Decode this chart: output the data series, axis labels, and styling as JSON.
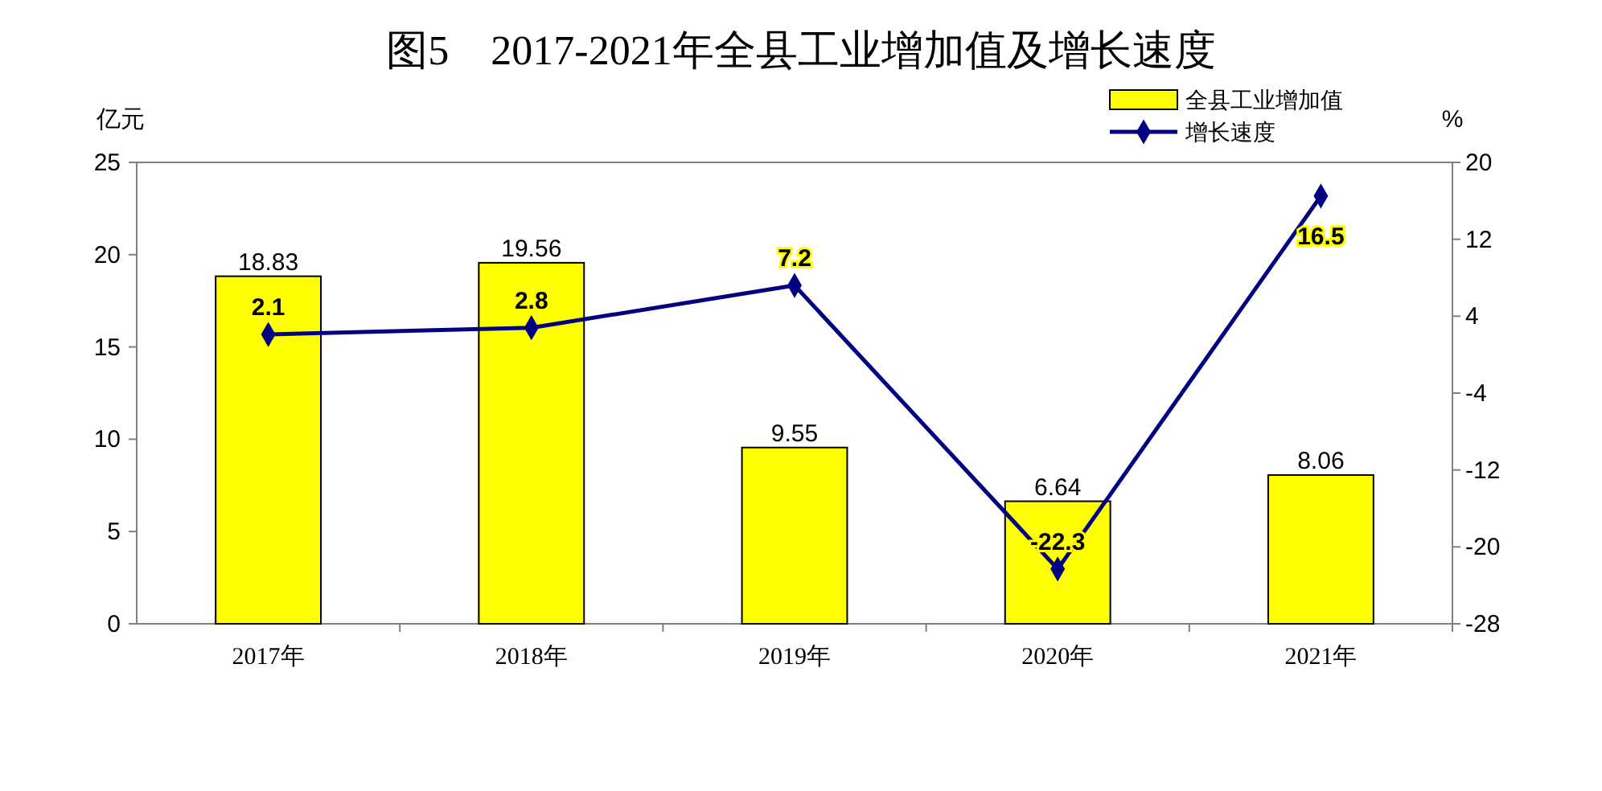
{
  "chart_data": {
    "type": "bar",
    "title": "图5　2017-2021年全县工业增加值及增长速度",
    "ylabel": "亿元",
    "y2label": "%",
    "categories": [
      "2017年",
      "2018年",
      "2019年",
      "2020年",
      "2021年"
    ],
    "series": [
      {
        "name": "全县工业增加值",
        "color": "#ffff00",
        "values": [
          18.83,
          19.56,
          9.55,
          6.64,
          8.06
        ]
      },
      {
        "name": "增长速度",
        "type": "line",
        "axis": "y2",
        "color": "#000080",
        "marker": "diamond",
        "values": [
          2.1,
          2.8,
          7.2,
          -22.3,
          16.5
        ]
      }
    ],
    "ylim": [
      0,
      25
    ],
    "yticks": [
      0,
      5,
      10,
      15,
      20,
      25
    ],
    "y2lim": [
      -28,
      20
    ],
    "y2ticks": [
      -28,
      -20,
      -12,
      -4,
      4,
      12,
      20
    ],
    "data_labels": true,
    "legend": "top right",
    "grid": false
  }
}
